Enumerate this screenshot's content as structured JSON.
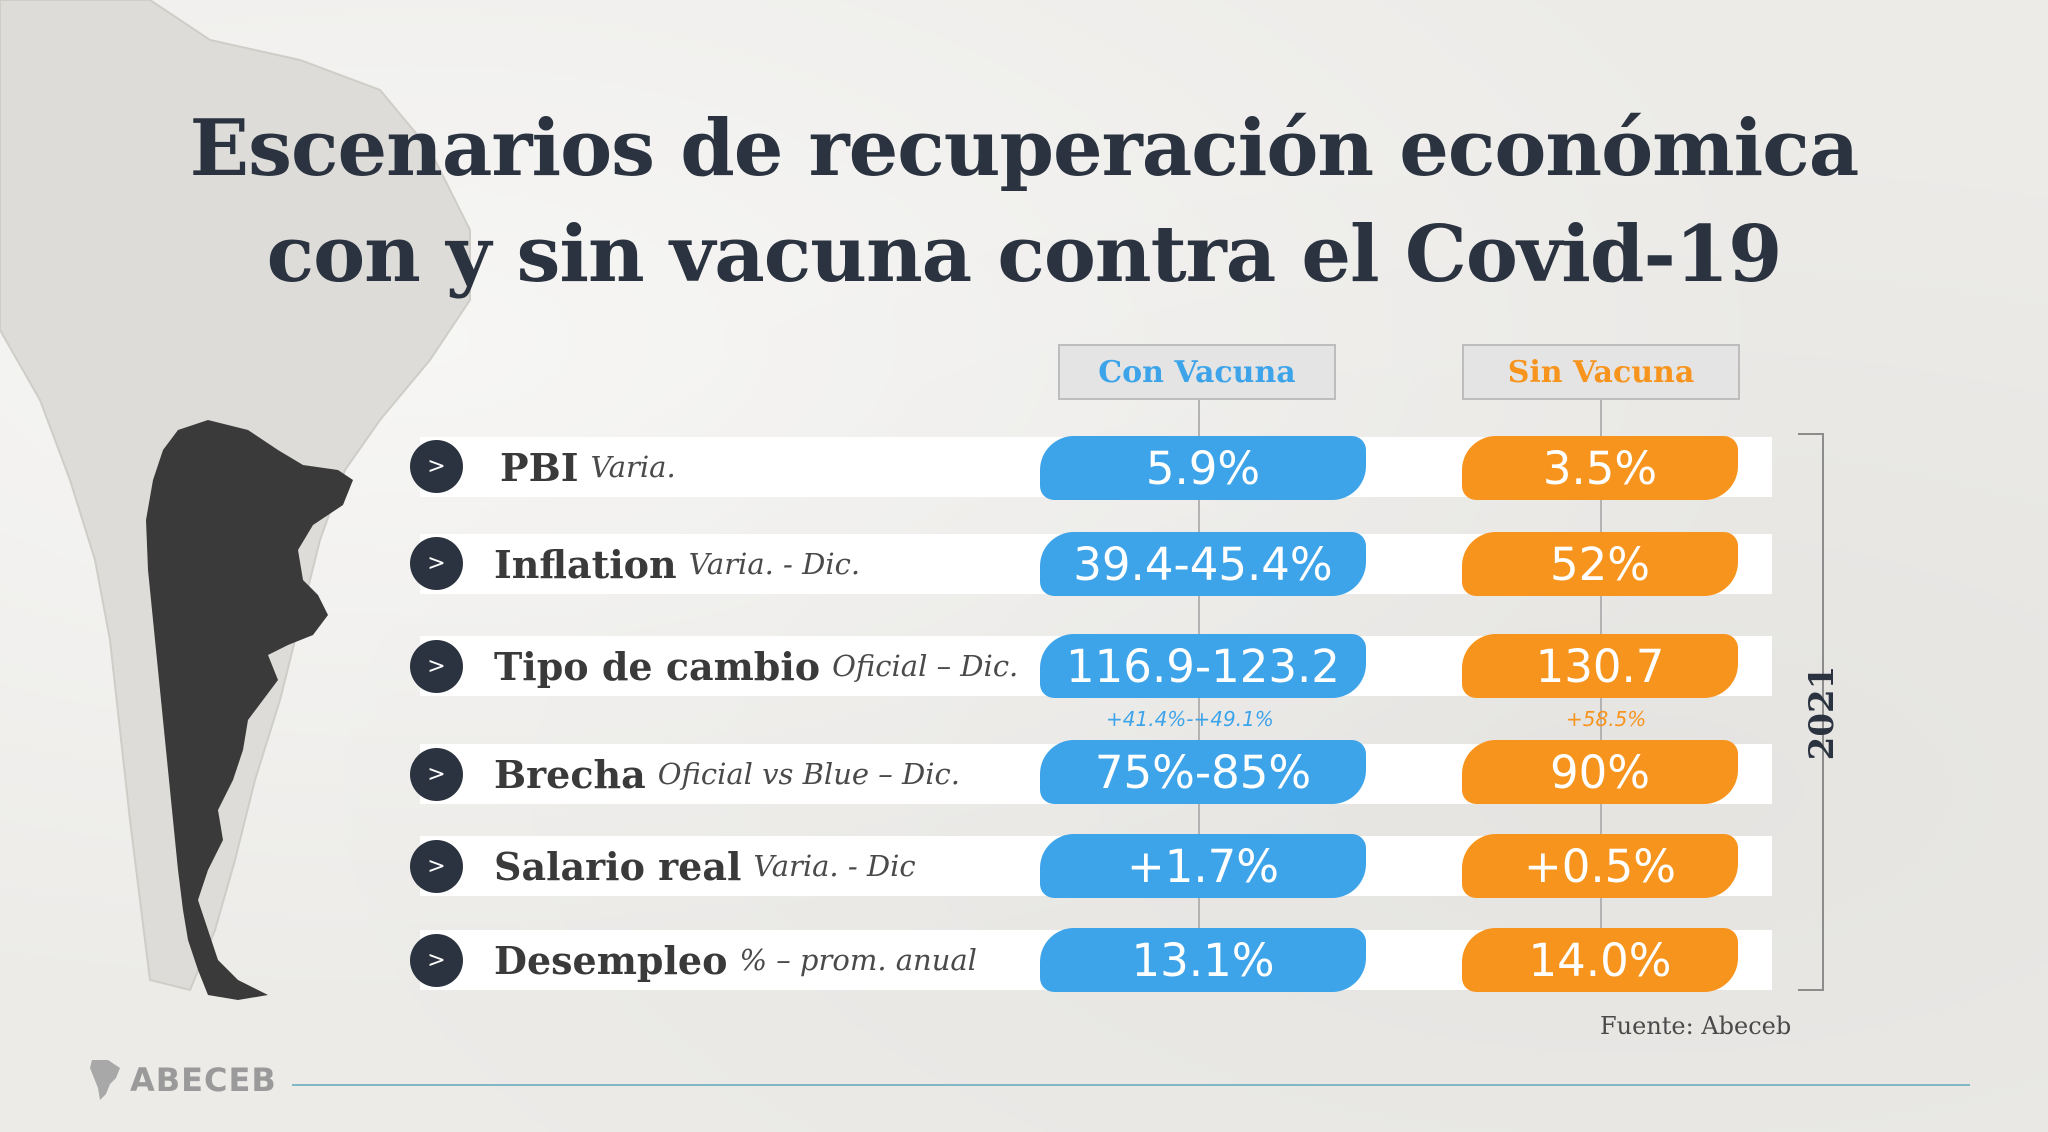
{
  "title": {
    "line1": "Escenarios de recuperación económica",
    "line2": "con y sin vacuna contra el Covid-19"
  },
  "columns": {
    "con": "Con Vacuna",
    "sin": "Sin Vacuna"
  },
  "rows": [
    {
      "label": "PBI",
      "sub": "Varia.",
      "con": "5.9%",
      "sin": "3.5%"
    },
    {
      "label": "Inflation",
      "sub": "Varia. - Dic.",
      "con": "39.4-45.4%",
      "sin": "52%"
    },
    {
      "label": "Tipo de cambio",
      "sub": "Oficial – Dic.",
      "con": "116.9-123.2",
      "sin": "130.7"
    },
    {
      "label": "Brecha",
      "sub": "Oficial vs Blue – Dic.",
      "con": "75%-85%",
      "sin": "90%"
    },
    {
      "label": "Salario real",
      "sub": "Varia. - Dic",
      "con": "+1.7%",
      "sin": "+0.5%"
    },
    {
      "label": "Desempleo",
      "sub": "% – prom. anual",
      "con": "13.1%",
      "sin": "14.0%"
    }
  ],
  "notes": {
    "con": "+41.4%-+49.1%",
    "sin": "+58.5%"
  },
  "year": "2021",
  "source": "Fuente: Abeceb",
  "logo": "ABECEB",
  "icons": {
    "row_marker": "chevron-right-icon",
    "chevron_glyph": ">"
  },
  "colors": {
    "con": "#3ea4ea",
    "sin": "#f7941d",
    "dark": "#2b3340"
  }
}
